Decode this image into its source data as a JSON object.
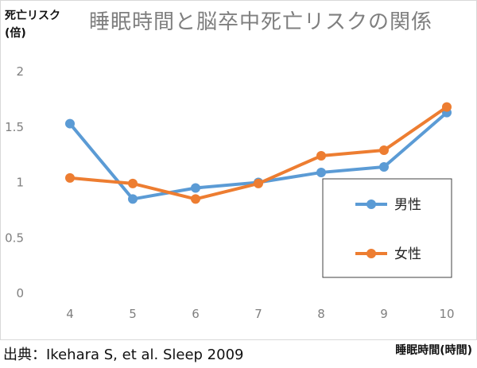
{
  "chart_data": {
    "type": "line",
    "title": "睡眠時間と脳卒中死亡リスクの関係",
    "ylabel_line1": "死亡リスク",
    "ylabel_line2": "(倍)",
    "xlabel": "睡眠時間(時間)",
    "categories": [
      "4",
      "5",
      "6",
      "7",
      "8",
      "9",
      "10"
    ],
    "yticks": [
      "0",
      "0.5",
      "1",
      "1.5",
      "2"
    ],
    "ylim": [
      0,
      2
    ],
    "grid": false,
    "legend_position": "lower-right",
    "series": [
      {
        "name": "男性",
        "color": "#5b9bd5",
        "values": [
          1.53,
          0.85,
          0.95,
          1.0,
          1.09,
          1.14,
          1.63
        ]
      },
      {
        "name": "女性",
        "color": "#ed7d31",
        "values": [
          1.04,
          0.99,
          0.85,
          0.99,
          1.24,
          1.29,
          1.68
        ]
      }
    ]
  },
  "source": "出典：Ikehara S, et al.   Sleep 2009"
}
